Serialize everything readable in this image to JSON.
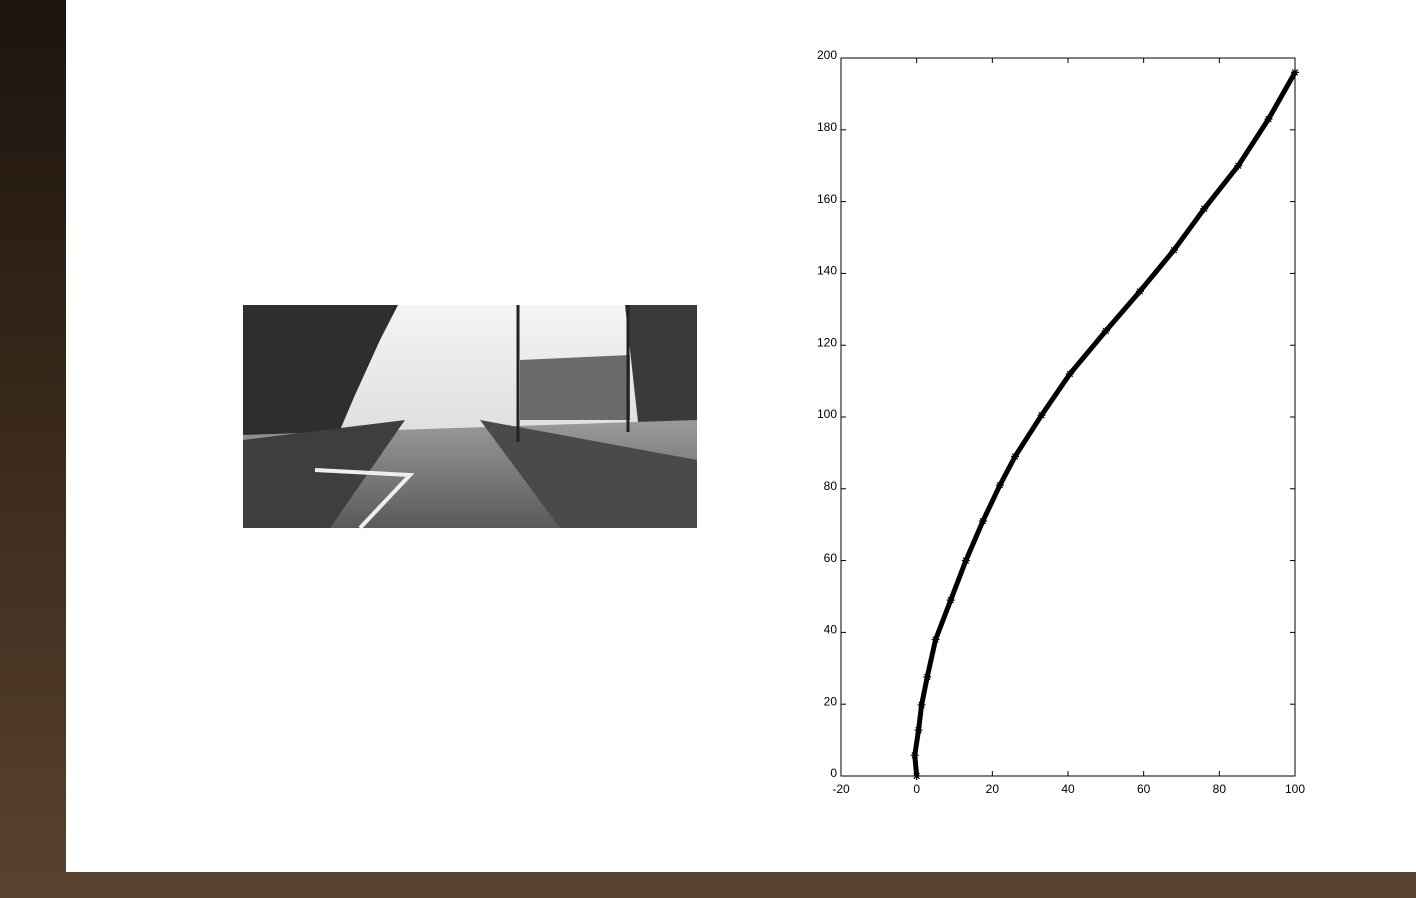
{
  "chart_data": {
    "type": "line",
    "x": [
      0,
      -0.5,
      0.5,
      1.3,
      2.8,
      5,
      9,
      13,
      17.5,
      22,
      26,
      33,
      40.5,
      50,
      59,
      68,
      76,
      85,
      93,
      100
    ],
    "values": [
      0,
      5.8,
      12.8,
      19.8,
      27.6,
      38,
      49,
      60,
      71,
      81,
      89,
      100.5,
      112,
      124,
      135,
      146.5,
      158,
      170,
      183,
      196
    ],
    "color": "#000000",
    "marker": "*",
    "xlim": [
      -20,
      100
    ],
    "xticks": [
      -20,
      0,
      20,
      40,
      60,
      80,
      100
    ],
    "ylim": [
      0,
      200
    ],
    "yticks": [
      0,
      20,
      40,
      60,
      80,
      100,
      120,
      140,
      160,
      180,
      200
    ]
  }
}
